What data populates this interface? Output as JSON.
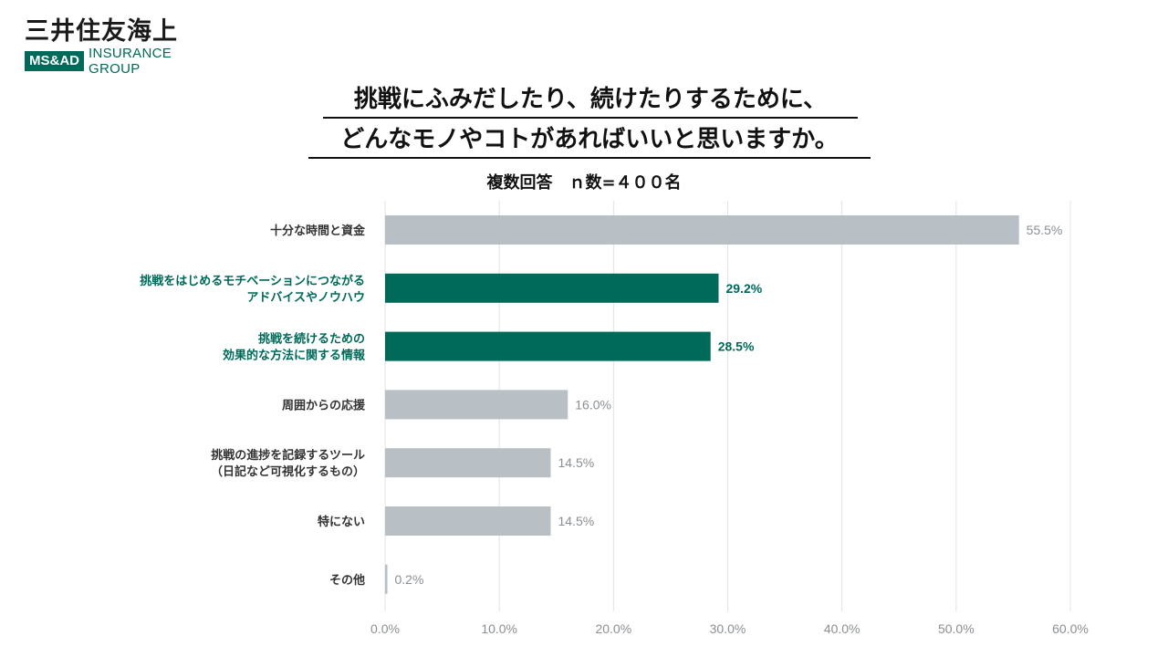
{
  "logo": {
    "company_jp": "三井住友海上",
    "brand": "MS&AD",
    "group": "INSURANCE GROUP"
  },
  "header": {
    "title_line1": "挑戦にふみだしたり、続けたりするために、",
    "title_line2": "どんなモノやコトがあればいいと思いますか。",
    "subtitle": "複数回答　ｎ数=４００名"
  },
  "colors": {
    "highlight": "#006a5a",
    "normal": "#b8bfc5",
    "grid": "#dfe3e6"
  },
  "chart_data": {
    "type": "bar",
    "orientation": "horizontal",
    "categories": [
      [
        "十分な時間と資金"
      ],
      [
        "挑戦をはじめるモチベーションにつながる",
        "アドバイスやノウハウ"
      ],
      [
        "挑戦を続けるための",
        "効果的な方法に関する情報"
      ],
      [
        "周囲からの応援"
      ],
      [
        "挑戦の進捗を記録するツール",
        "（日記など可視化するもの）"
      ],
      [
        "特にない"
      ],
      [
        "その他"
      ]
    ],
    "values": [
      55.5,
      29.2,
      28.5,
      16.0,
      14.5,
      14.5,
      0.2
    ],
    "value_labels": [
      "55.5%",
      "29.2%",
      "28.5%",
      "16.0%",
      "14.5%",
      "14.5%",
      "0.2%"
    ],
    "highlighted": [
      false,
      true,
      true,
      false,
      false,
      false,
      false
    ],
    "xlim": [
      0,
      60
    ],
    "xticks": [
      "0.0%",
      "10.0%",
      "20.0%",
      "30.0%",
      "40.0%",
      "50.0%",
      "60.0%"
    ],
    "grid": true,
    "legend": "none"
  }
}
